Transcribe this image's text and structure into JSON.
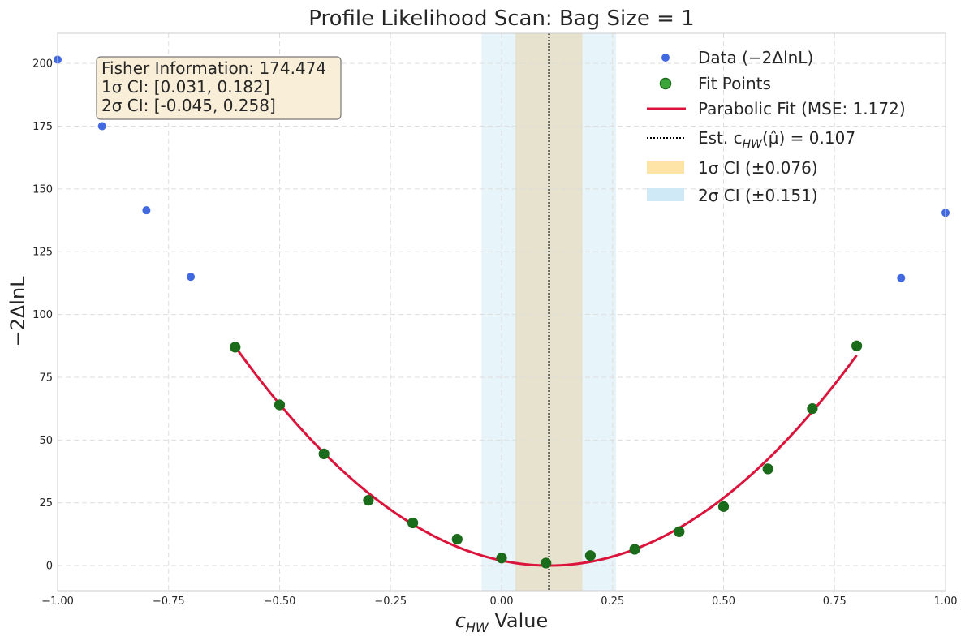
{
  "chart_data": {
    "type": "scatter",
    "title": "Profile Likelihood Scan: Bag Size = 1",
    "xlabel_main": "c",
    "xlabel_sub": "HW",
    "xlabel_rest": " Value",
    "ylabel": "−2ΔlnL",
    "xlim": [
      -1.0,
      1.0
    ],
    "ylim": [
      -10,
      212
    ],
    "x_ticks": [
      -1.0,
      -0.75,
      -0.5,
      -0.25,
      0.0,
      0.25,
      0.5,
      0.75,
      1.0
    ],
    "x_tick_labels": [
      "−1.00",
      "−0.75",
      "−0.50",
      "−0.25",
      "0.00",
      "0.25",
      "0.50",
      "0.75",
      "1.00"
    ],
    "y_ticks": [
      0,
      25,
      50,
      75,
      100,
      125,
      150,
      175,
      200
    ],
    "y_tick_labels": [
      "0",
      "25",
      "50",
      "75",
      "100",
      "125",
      "150",
      "175",
      "200"
    ],
    "grid": true,
    "legend_position": "top-right",
    "colors": {
      "data": "#4169e1",
      "fit_points": "#3aa63a",
      "fit_points_edge": "#1a6b1a",
      "fit_line": "#dc143c",
      "estimate_line": "#000000",
      "ci1": "#ffe4a8",
      "ci2": "#cfeaf6",
      "info_bg": "#f9eed8",
      "info_border": "#777777"
    },
    "series": [
      {
        "name": "Data (−2ΔlnL)",
        "x": [
          -1.0,
          -0.9,
          -0.8,
          -0.7,
          -0.6,
          -0.5,
          -0.4,
          -0.3,
          -0.2,
          -0.1,
          0.0,
          0.1,
          0.2,
          0.3,
          0.4,
          0.5,
          0.6,
          0.7,
          0.8,
          0.9,
          1.0
        ],
        "y": [
          201.5,
          175.0,
          141.5,
          115.0,
          87.0,
          64.0,
          44.5,
          26.0,
          17.0,
          10.5,
          3.0,
          1.0,
          4.0,
          6.5,
          13.5,
          23.5,
          38.5,
          62.5,
          87.5,
          114.5,
          140.5
        ]
      },
      {
        "name": "Fit Points",
        "x": [
          -0.6,
          -0.5,
          -0.4,
          -0.3,
          -0.2,
          -0.1,
          0.0,
          0.1,
          0.2,
          0.3,
          0.4,
          0.5,
          0.6,
          0.7,
          0.8
        ],
        "y": [
          87.0,
          64.0,
          44.5,
          26.0,
          17.0,
          10.5,
          3.0,
          1.0,
          4.0,
          6.5,
          13.5,
          23.5,
          38.5,
          62.5,
          87.5
        ]
      },
      {
        "name": "Parabolic Fit (MSE: 1.172)",
        "type": "line",
        "x_range": [
          -0.6,
          0.8
        ],
        "center": 0.107,
        "curvature": 174.474
      }
    ],
    "estimate": {
      "value": 0.107,
      "label_prefix": "Est. c",
      "label_sub": "HW",
      "label_suffix": "(μ̂) = 0.107"
    },
    "ci1": {
      "range": [
        0.031,
        0.182
      ],
      "label": "1σ CI (±0.076)"
    },
    "ci2": {
      "range": [
        -0.045,
        0.258
      ],
      "label": "2σ CI (±0.151)"
    },
    "info_box": {
      "lines": [
        "Fisher Information: 174.474",
        "1σ CI: [0.031, 0.182]",
        "2σ CI: [-0.045, 0.258]"
      ]
    }
  }
}
